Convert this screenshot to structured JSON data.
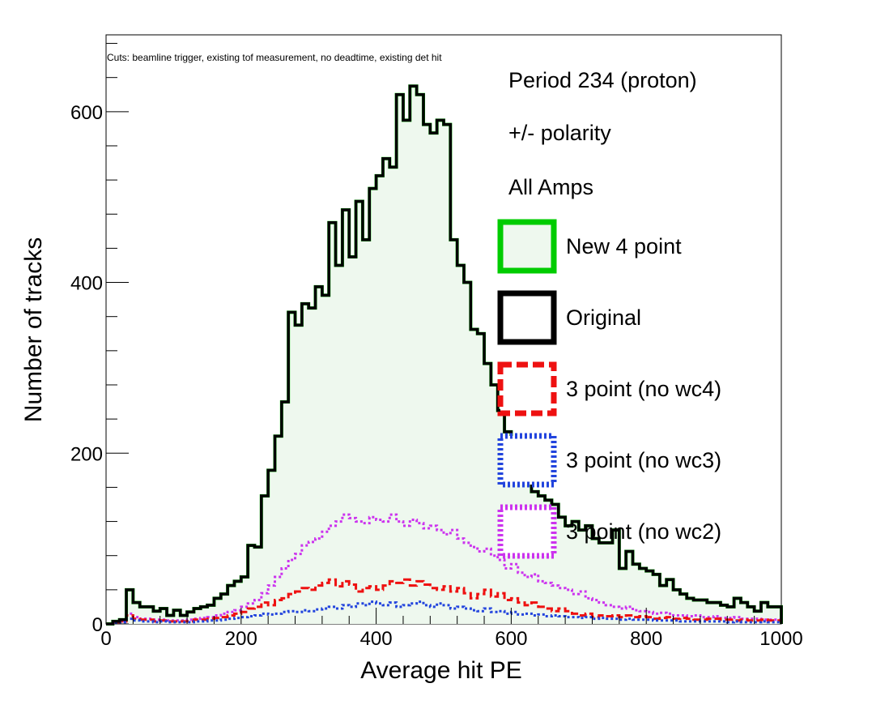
{
  "chart_data": {
    "type": "histogram",
    "xlabel": "Average hit PE",
    "ylabel": "Number of tracks",
    "xlim": [
      0,
      1000
    ],
    "ylim": [
      0,
      690
    ],
    "x_ticks": [
      0,
      200,
      400,
      600,
      800,
      1000
    ],
    "y_ticks": [
      0,
      200,
      400,
      600
    ],
    "cuts_note": "Cuts: beamline trigger, existing tof measurement, no deadtime, existing det hit",
    "legend_headers": [
      "Period 234 (proton)",
      "+/- polarity",
      "All Amps"
    ],
    "bin_width": 10,
    "bin_edges_start": 0,
    "series": [
      {
        "name": "New 4 point",
        "color": "#00cc00",
        "fill": "#eef8ee",
        "style": "solid",
        "values": [
          0,
          3,
          5,
          40,
          25,
          20,
          20,
          15,
          18,
          10,
          16,
          10,
          14,
          18,
          20,
          22,
          30,
          35,
          45,
          50,
          55,
          92,
          90,
          150,
          180,
          220,
          260,
          365,
          350,
          375,
          370,
          395,
          385,
          470,
          420,
          485,
          430,
          495,
          450,
          510,
          525,
          545,
          535,
          620,
          590,
          630,
          620,
          585,
          575,
          590,
          585,
          450,
          420,
          400,
          345,
          340,
          305,
          280,
          250,
          225,
          200,
          210,
          190,
          155,
          150,
          145,
          140,
          125,
          115,
          120,
          110,
          115,
          100,
          95,
          95,
          110,
          65,
          85,
          70,
          65,
          62,
          58,
          45,
          52,
          40,
          35,
          30,
          28,
          28,
          25,
          25,
          22,
          20,
          30,
          25,
          20,
          15,
          25,
          20,
          20
        ]
      },
      {
        "name": "Original",
        "color": "#000000",
        "style": "solid",
        "values": [
          0,
          3,
          5,
          40,
          25,
          20,
          20,
          15,
          18,
          10,
          16,
          10,
          14,
          18,
          20,
          22,
          30,
          35,
          45,
          50,
          55,
          92,
          90,
          150,
          180,
          220,
          260,
          365,
          350,
          375,
          370,
          395,
          385,
          470,
          420,
          485,
          430,
          495,
          450,
          510,
          525,
          545,
          535,
          620,
          590,
          630,
          620,
          585,
          575,
          590,
          585,
          450,
          420,
          400,
          345,
          340,
          305,
          280,
          250,
          225,
          200,
          210,
          190,
          155,
          150,
          145,
          140,
          125,
          115,
          120,
          110,
          115,
          100,
          95,
          95,
          110,
          65,
          85,
          70,
          65,
          62,
          58,
          45,
          52,
          40,
          35,
          30,
          28,
          28,
          25,
          25,
          22,
          20,
          30,
          25,
          20,
          15,
          25,
          20,
          20
        ]
      },
      {
        "name": "3 point (no wc4)",
        "color": "#ee1111",
        "style": "dashed",
        "values": [
          0,
          2,
          3,
          10,
          6,
          5,
          5,
          3,
          4,
          3,
          3,
          3,
          3,
          5,
          5,
          6,
          7,
          8,
          10,
          12,
          14,
          18,
          20,
          25,
          22,
          28,
          30,
          35,
          38,
          42,
          40,
          45,
          48,
          52,
          44,
          50,
          46,
          38,
          42,
          44,
          40,
          45,
          50,
          48,
          52,
          45,
          50,
          46,
          42,
          40,
          44,
          38,
          42,
          36,
          30,
          35,
          40,
          32,
          36,
          28,
          30,
          25,
          22,
          25,
          20,
          18,
          15,
          18,
          15,
          12,
          10,
          12,
          8,
          10,
          9,
          10,
          8,
          10,
          8,
          9,
          8,
          6,
          7,
          8,
          6,
          7,
          6,
          5,
          5,
          6,
          6,
          5,
          5,
          4,
          5,
          4,
          4,
          5,
          4,
          4
        ]
      },
      {
        "name": "3 point (no wc3)",
        "color": "#2244dd",
        "style": "dotted",
        "values": [
          0,
          1,
          2,
          6,
          4,
          3,
          3,
          2,
          3,
          2,
          2,
          2,
          2,
          3,
          3,
          4,
          4,
          5,
          6,
          7,
          8,
          9,
          10,
          12,
          11,
          12,
          14,
          15,
          14,
          16,
          15,
          17,
          18,
          20,
          18,
          22,
          20,
          24,
          22,
          26,
          24,
          22,
          25,
          20,
          22,
          24,
          26,
          22,
          20,
          24,
          22,
          18,
          20,
          18,
          16,
          15,
          18,
          14,
          15,
          12,
          14,
          11,
          12,
          10,
          11,
          9,
          10,
          9,
          8,
          8,
          7,
          8,
          6,
          7,
          6,
          6,
          5,
          6,
          5,
          5,
          5,
          4,
          4,
          4,
          4,
          3,
          3,
          3,
          3,
          3,
          3,
          3,
          2,
          3,
          2,
          2,
          2,
          3,
          2,
          2
        ]
      },
      {
        "name": "3 point (no wc2)",
        "color": "#cc33ee",
        "style": "dotted",
        "values": [
          0,
          2,
          3,
          12,
          8,
          6,
          6,
          5,
          5,
          4,
          4,
          4,
          5,
          6,
          7,
          8,
          10,
          12,
          14,
          16,
          20,
          24,
          28,
          36,
          45,
          55,
          65,
          75,
          82,
          92,
          96,
          100,
          108,
          115,
          120,
          128,
          124,
          120,
          118,
          125,
          122,
          120,
          128,
          120,
          115,
          122,
          118,
          112,
          115,
          110,
          105,
          110,
          100,
          95,
          90,
          85,
          88,
          80,
          75,
          65,
          70,
          60,
          55,
          58,
          50,
          48,
          45,
          42,
          40,
          35,
          38,
          30,
          28,
          25,
          22,
          20,
          18,
          20,
          16,
          15,
          14,
          12,
          13,
          12,
          10,
          10,
          9,
          10,
          8,
          8,
          9,
          7,
          7,
          8,
          6,
          6,
          6,
          5,
          5,
          5
        ]
      }
    ]
  }
}
